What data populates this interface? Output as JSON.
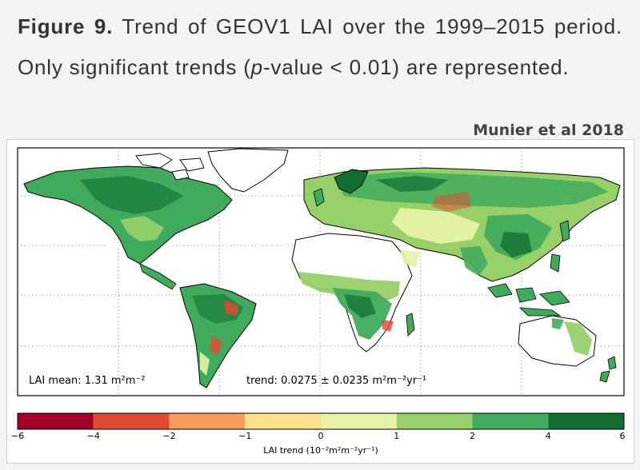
{
  "caption": {
    "figure_label": "Figure 9.",
    "text_part1": "Trend of GEOV1 LAI over the 1999–2015 period. Only significant trends (",
    "p_italic": "p",
    "text_part2": "-value < 0.01) are represented."
  },
  "credit": "Munier et al 2018",
  "map": {
    "lai_mean": "LAI mean: 1.31 m²m⁻²",
    "trend": "trend: 0.0275 ± 0.0235 m²m⁻²yr⁻¹"
  },
  "colorbar": {
    "title": "LAI trend (10⁻²m²m⁻²yr⁻¹)",
    "ticks": [
      "−6",
      "−4",
      "−2",
      "−1",
      "0",
      "1",
      "2",
      "4",
      "6"
    ],
    "colors": [
      "#a50026",
      "#e34a33",
      "#f89c5a",
      "#fde08a",
      "#e7f2a5",
      "#97d069",
      "#41ab5d",
      "#0f6e30"
    ]
  },
  "colors": {
    "land_bare": "#ffffff",
    "land_low": "#e7f2a5",
    "land_mid": "#97d069",
    "land_high": "#41ab5d",
    "land_dense": "#0f6e30",
    "neg_trend": "#e34a33"
  }
}
